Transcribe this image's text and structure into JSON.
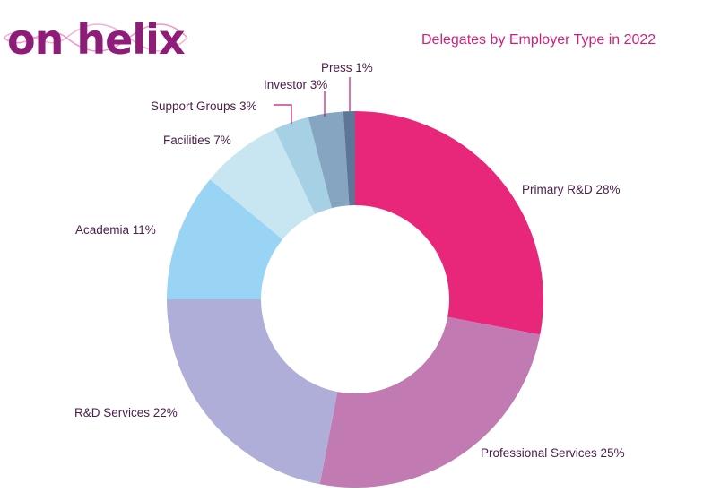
{
  "logo": {
    "text": "on helix",
    "colors": {
      "primary": "#8e1d7a",
      "highlight": "#e8237a",
      "helix": "#f28ac0"
    }
  },
  "chart_data": {
    "type": "pie",
    "style": "donut",
    "title": "Delegates by Employer Type in 2022",
    "start": "12 o'clock",
    "direction": "clockwise",
    "slices": [
      {
        "label": "Primary R&D",
        "value": 28,
        "display": "Primary R&D 28%",
        "color": "#e8267a"
      },
      {
        "label": "Professional Services",
        "value": 25,
        "display": "Professional Services 25%",
        "color": "#c27ab3"
      },
      {
        "label": "R&D Services",
        "value": 22,
        "display": "R&D Services 22%",
        "color": "#aeaed8"
      },
      {
        "label": "Academia",
        "value": 11,
        "display": "Academia 11%",
        "color": "#9ad4f5"
      },
      {
        "label": "Facilities",
        "value": 7,
        "display": "Facilities 7%",
        "color": "#c8e6f2"
      },
      {
        "label": "Support Groups",
        "value": 3,
        "display": "Support Groups 3%",
        "color": "#a6d0e4"
      },
      {
        "label": "Investor",
        "value": 3,
        "display": "Investor 3%",
        "color": "#85a5c1"
      },
      {
        "label": "Press",
        "value": 1,
        "display": "Press 1%",
        "color": "#5e7597"
      }
    ],
    "leader_color": "#c2187a"
  }
}
